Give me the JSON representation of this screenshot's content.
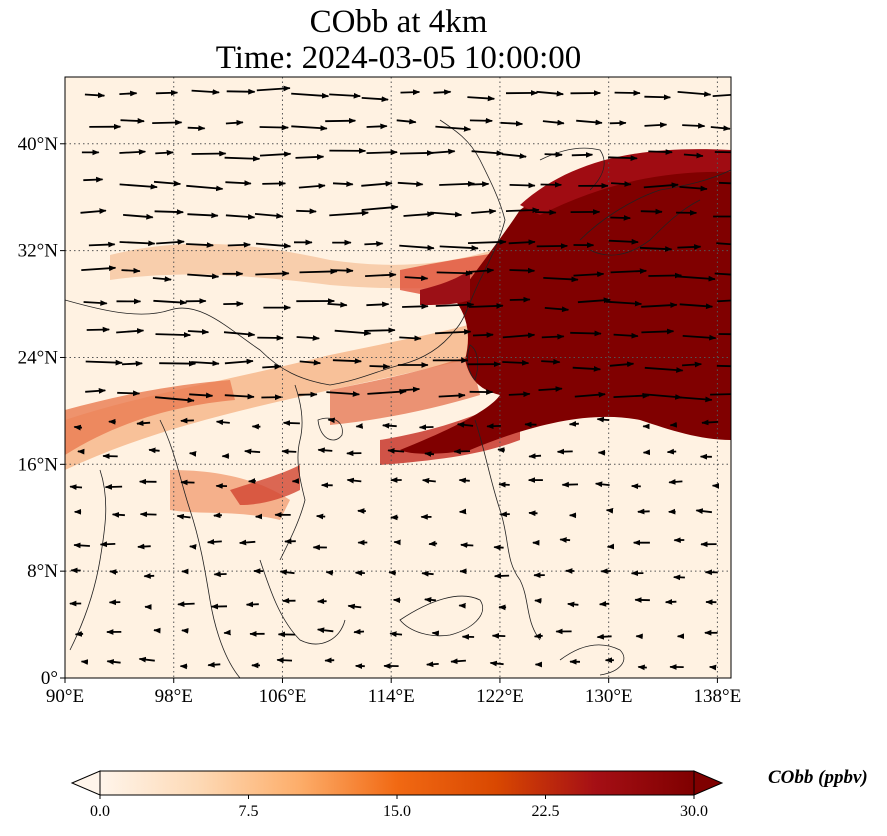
{
  "title_line1": "CObb at 4km",
  "title_line2": "Time: 2024-03-05 10:00:00",
  "map": {
    "lon_range": [
      90,
      139
    ],
    "lat_range": [
      0,
      45
    ],
    "lon_ticks": [
      {
        "value": 90,
        "label": "90°E"
      },
      {
        "value": 98,
        "label": "98°E"
      },
      {
        "value": 106,
        "label": "106°E"
      },
      {
        "value": 114,
        "label": "114°E"
      },
      {
        "value": 122,
        "label": "122°E"
      },
      {
        "value": 130,
        "label": "130°E"
      },
      {
        "value": 138,
        "label": "138°E"
      }
    ],
    "lat_ticks": [
      {
        "value": 0,
        "label": "0°"
      },
      {
        "value": 8,
        "label": "8°N"
      },
      {
        "value": 16,
        "label": "16°N"
      },
      {
        "value": 24,
        "label": "24°N"
      },
      {
        "value": 32,
        "label": "32°N"
      },
      {
        "value": 40,
        "label": "40°N"
      }
    ],
    "gridlines": "dotted",
    "overlay": "wind vectors"
  },
  "colorbar": {
    "label": "CObb (ppbv)",
    "min": 0.0,
    "max": 30.0,
    "extend": "both",
    "colormap": [
      "#fff5eb",
      "#fdd9b5",
      "#fdae6b",
      "#f16913",
      "#d94801",
      "#a50f15",
      "#7f0000"
    ],
    "ticks": [
      {
        "value": 0.0,
        "label": "0.0"
      },
      {
        "value": 7.5,
        "label": "7.5"
      },
      {
        "value": 15.0,
        "label": "15.0"
      },
      {
        "value": 22.5,
        "label": "22.5"
      },
      {
        "value": 30.0,
        "label": "30.0"
      }
    ]
  }
}
